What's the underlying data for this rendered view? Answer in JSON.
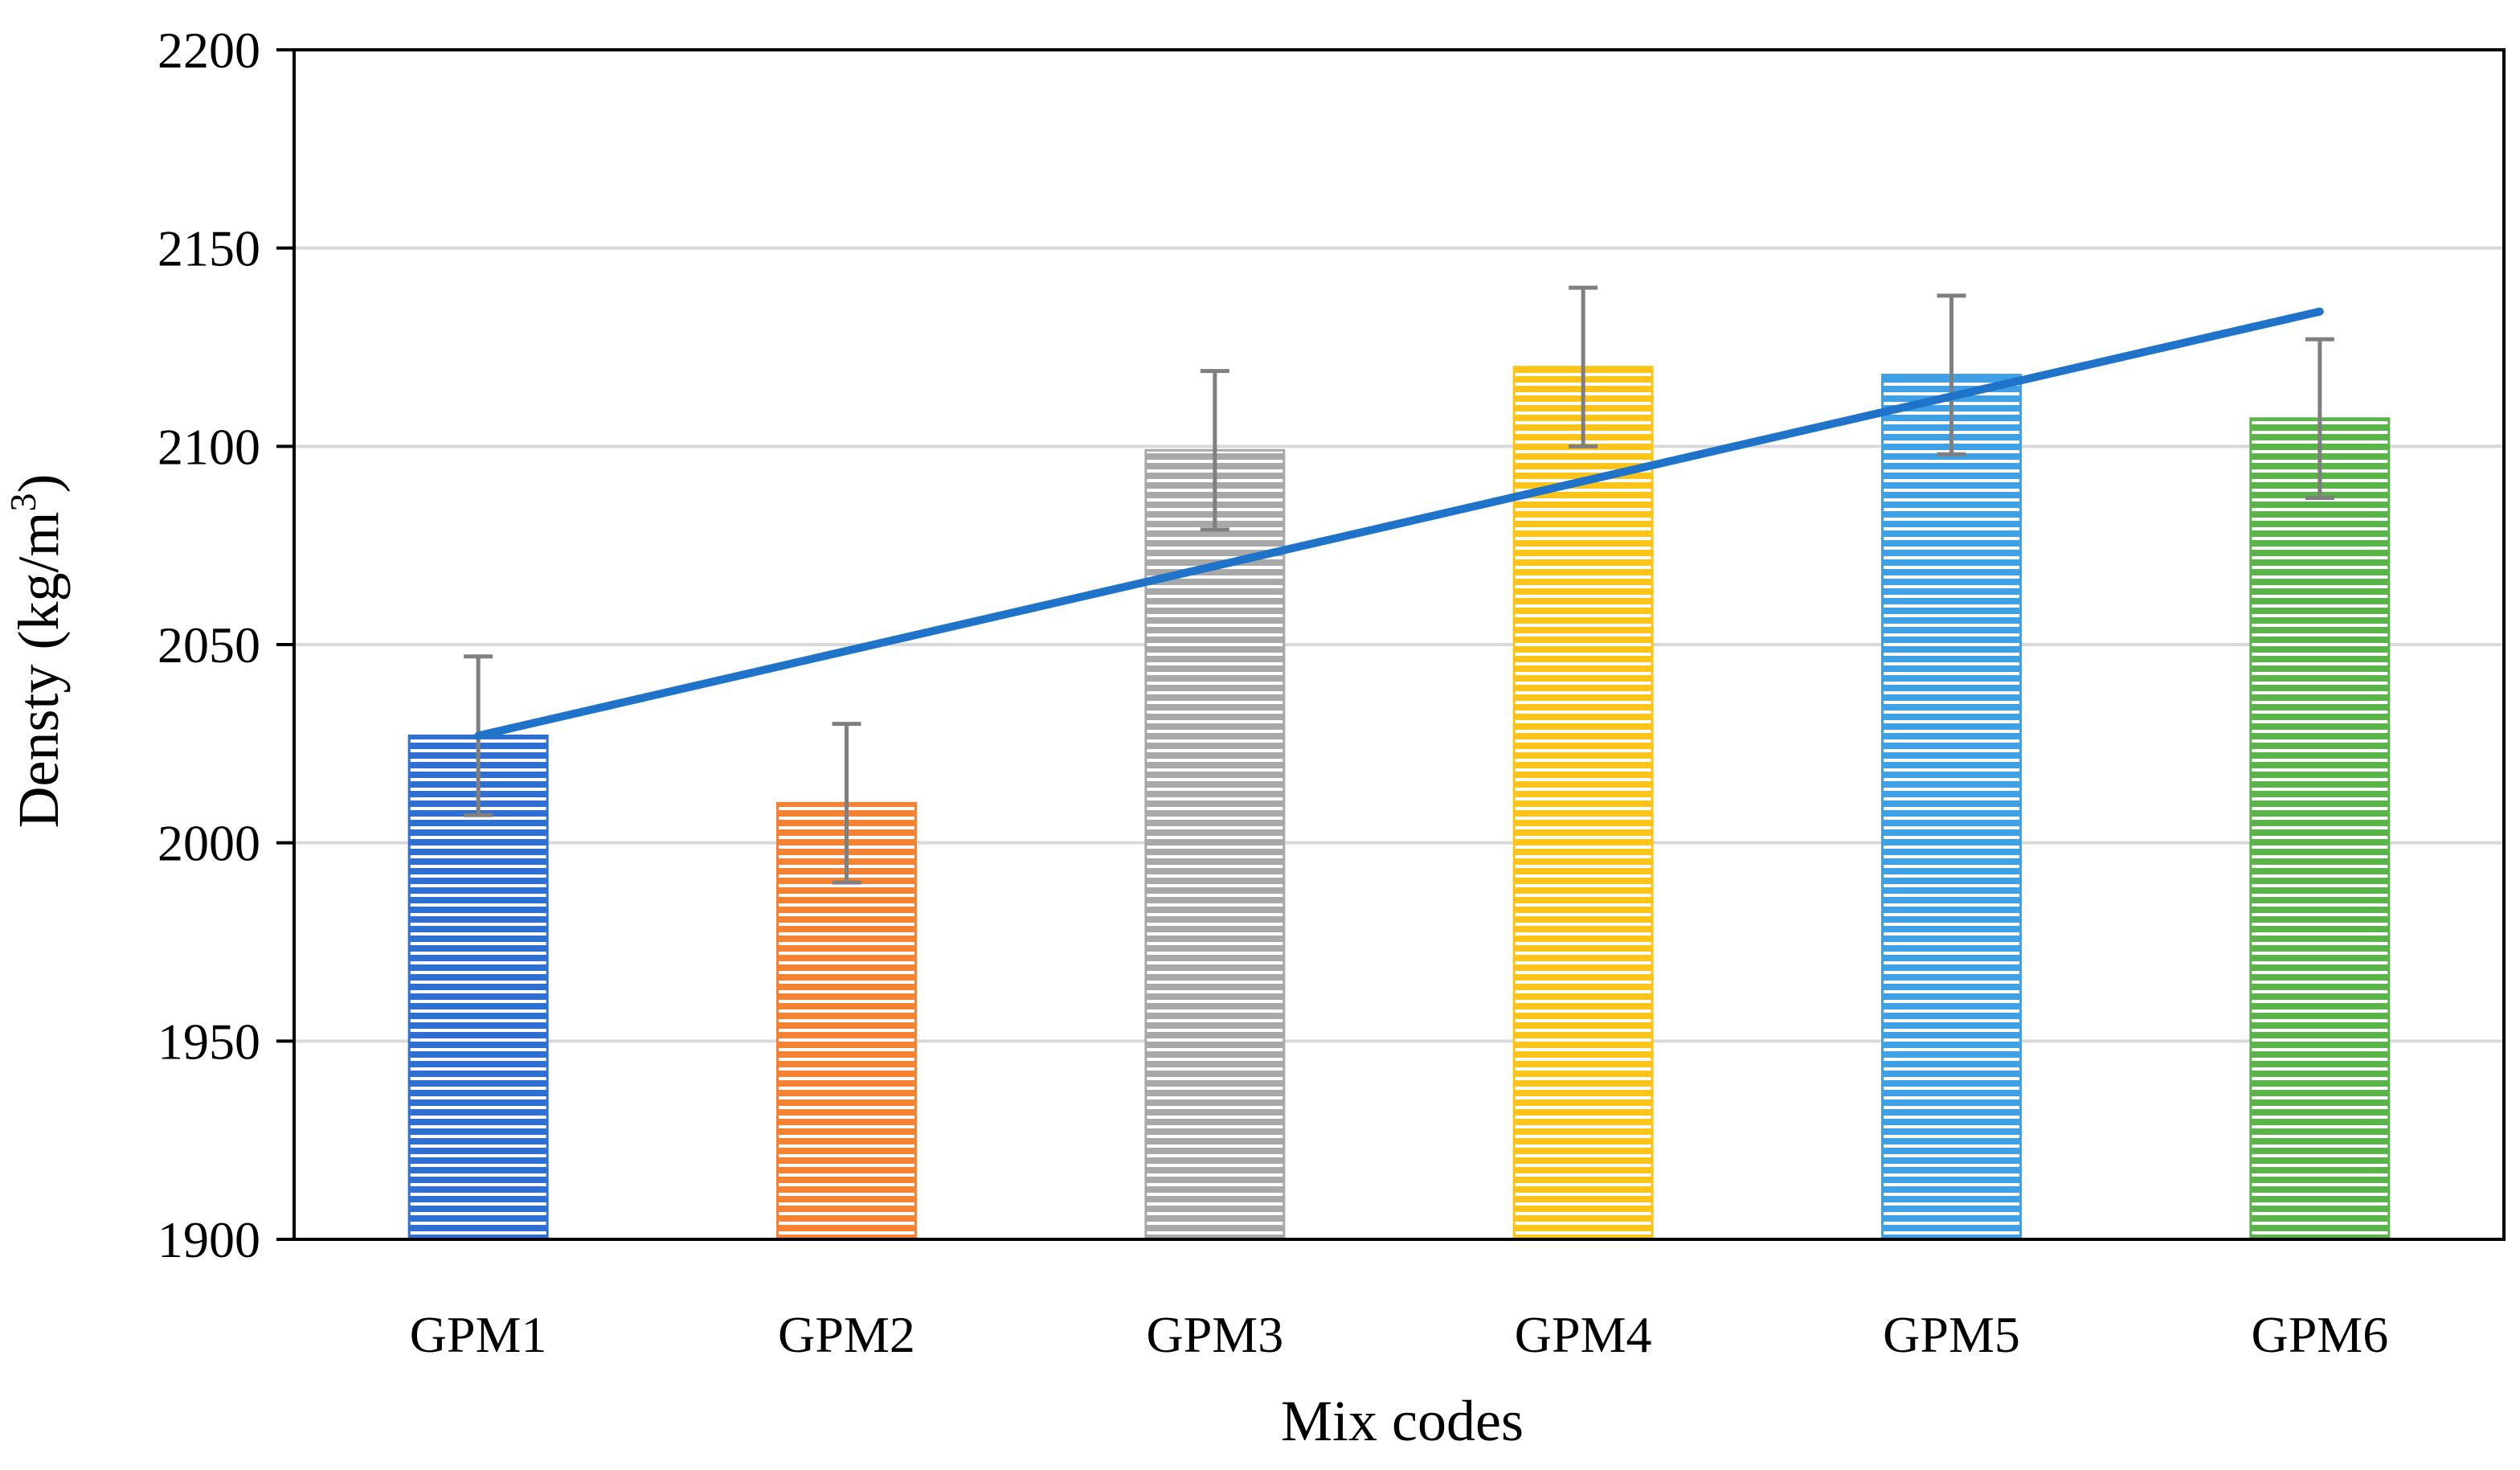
{
  "chart_data": {
    "type": "bar",
    "title": "",
    "xlabel": "Mix codes",
    "ylabel_main": "Densty (kg/m",
    "ylabel_sup": "3",
    "ylabel_close": ")",
    "categories": [
      "GPM1",
      "GPM2",
      "GPM3",
      "GPM4",
      "GPM5",
      "GPM6"
    ],
    "values": [
      2027,
      2010,
      2099,
      2120,
      2118,
      2107
    ],
    "error": [
      20,
      20,
      20,
      20,
      20,
      20
    ],
    "bar_colors": [
      "#2f6fd1",
      "#f58132",
      "#a8a8a8",
      "#fcc418",
      "#3fa0e6",
      "#5ab44a"
    ],
    "ylim": [
      1900,
      2200
    ],
    "yticks": [
      1900,
      1950,
      2000,
      2050,
      2100,
      2150,
      2200
    ],
    "grid": true,
    "trendline": {
      "type": "linear",
      "color": "#1f74c9",
      "start": [
        1,
        2027
      ],
      "end": [
        6,
        2134
      ]
    }
  }
}
